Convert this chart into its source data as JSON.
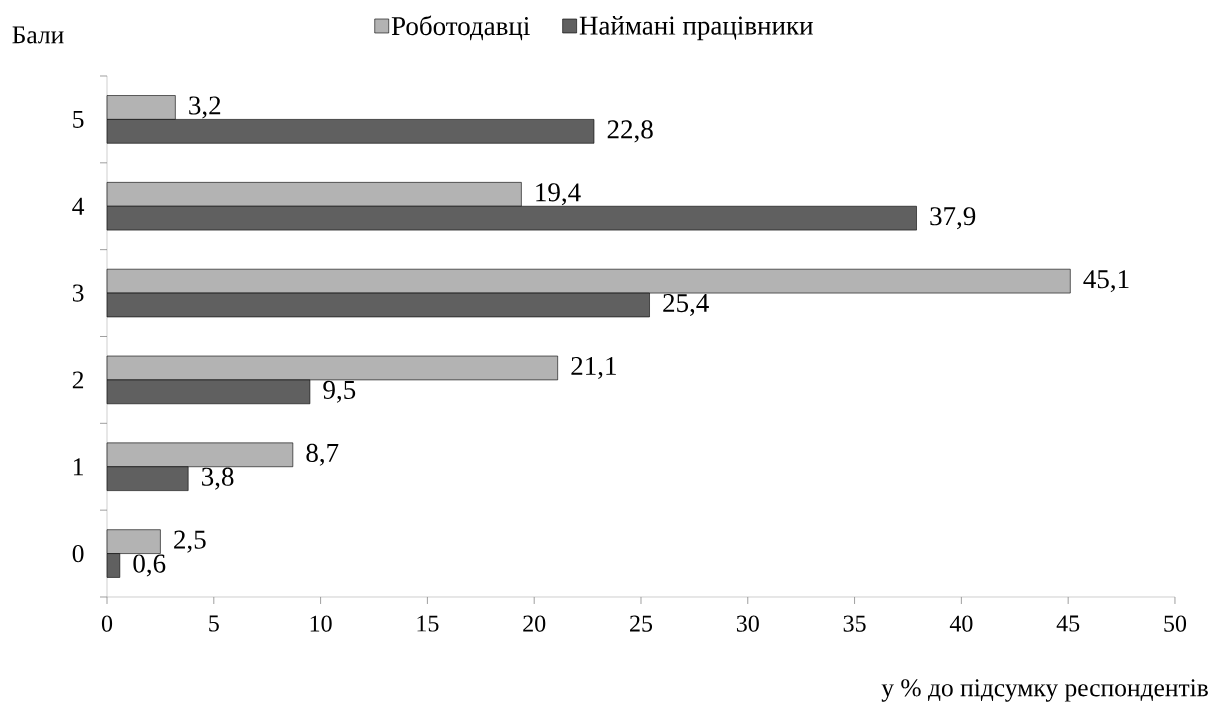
{
  "chart_data": {
    "type": "bar",
    "orientation": "horizontal",
    "ylabel": "Бали",
    "xlabel": "у % до підсумку респондентів",
    "categories": [
      "5",
      "4",
      "3",
      "2",
      "1",
      "0"
    ],
    "series": [
      {
        "name": "Роботодавці",
        "color": "#b3b3b3",
        "values": [
          3.2,
          19.4,
          45.1,
          21.1,
          8.7,
          2.5
        ],
        "value_labels": [
          "3,2",
          "19,4",
          "45,1",
          "21,1",
          "8,7",
          "2,5"
        ]
      },
      {
        "name": "Наймані працівники",
        "color": "#606060",
        "values": [
          22.8,
          37.9,
          25.4,
          9.5,
          3.8,
          0.6
        ],
        "value_labels": [
          "22,8",
          "37,9",
          "25,4",
          "9,5",
          "3,8",
          "0,6"
        ]
      }
    ],
    "xlim": [
      0,
      50
    ],
    "xticks": [
      0,
      5,
      10,
      15,
      20,
      25,
      30,
      35,
      40,
      45,
      50
    ],
    "legend": "top"
  }
}
